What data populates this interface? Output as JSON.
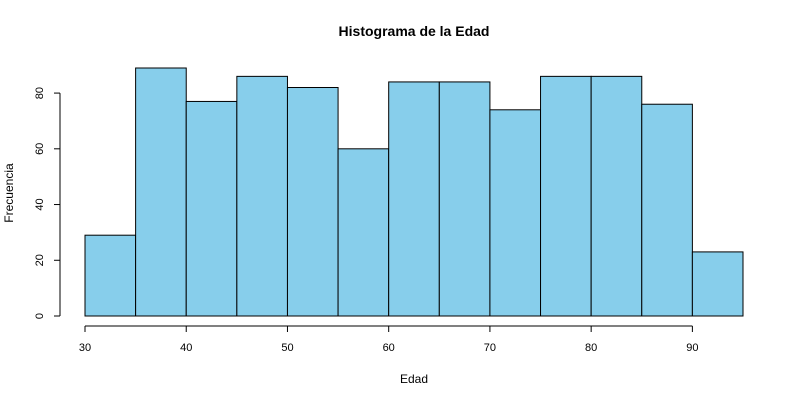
{
  "chart_data": {
    "type": "bar",
    "title": "Histograma de la Edad",
    "xlabel": "Edad",
    "ylabel": "Frecuencia",
    "bins": [
      {
        "start": 30,
        "end": 35,
        "count": 29
      },
      {
        "start": 35,
        "end": 40,
        "count": 89
      },
      {
        "start": 40,
        "end": 45,
        "count": 77
      },
      {
        "start": 45,
        "end": 50,
        "count": 86
      },
      {
        "start": 50,
        "end": 55,
        "count": 82
      },
      {
        "start": 55,
        "end": 60,
        "count": 60
      },
      {
        "start": 60,
        "end": 65,
        "count": 84
      },
      {
        "start": 65,
        "end": 70,
        "count": 84
      },
      {
        "start": 70,
        "end": 75,
        "count": 74
      },
      {
        "start": 75,
        "end": 80,
        "count": 86
      },
      {
        "start": 80,
        "end": 85,
        "count": 86
      },
      {
        "start": 85,
        "end": 90,
        "count": 76
      },
      {
        "start": 90,
        "end": 95,
        "count": 23
      }
    ],
    "x_ticks": [
      30,
      40,
      50,
      60,
      70,
      80,
      90
    ],
    "y_ticks": [
      0,
      20,
      40,
      60,
      80
    ],
    "xlim": [
      30,
      95
    ],
    "ylim": [
      0,
      89
    ],
    "bar_color": "#87CEEB",
    "grid": false
  }
}
